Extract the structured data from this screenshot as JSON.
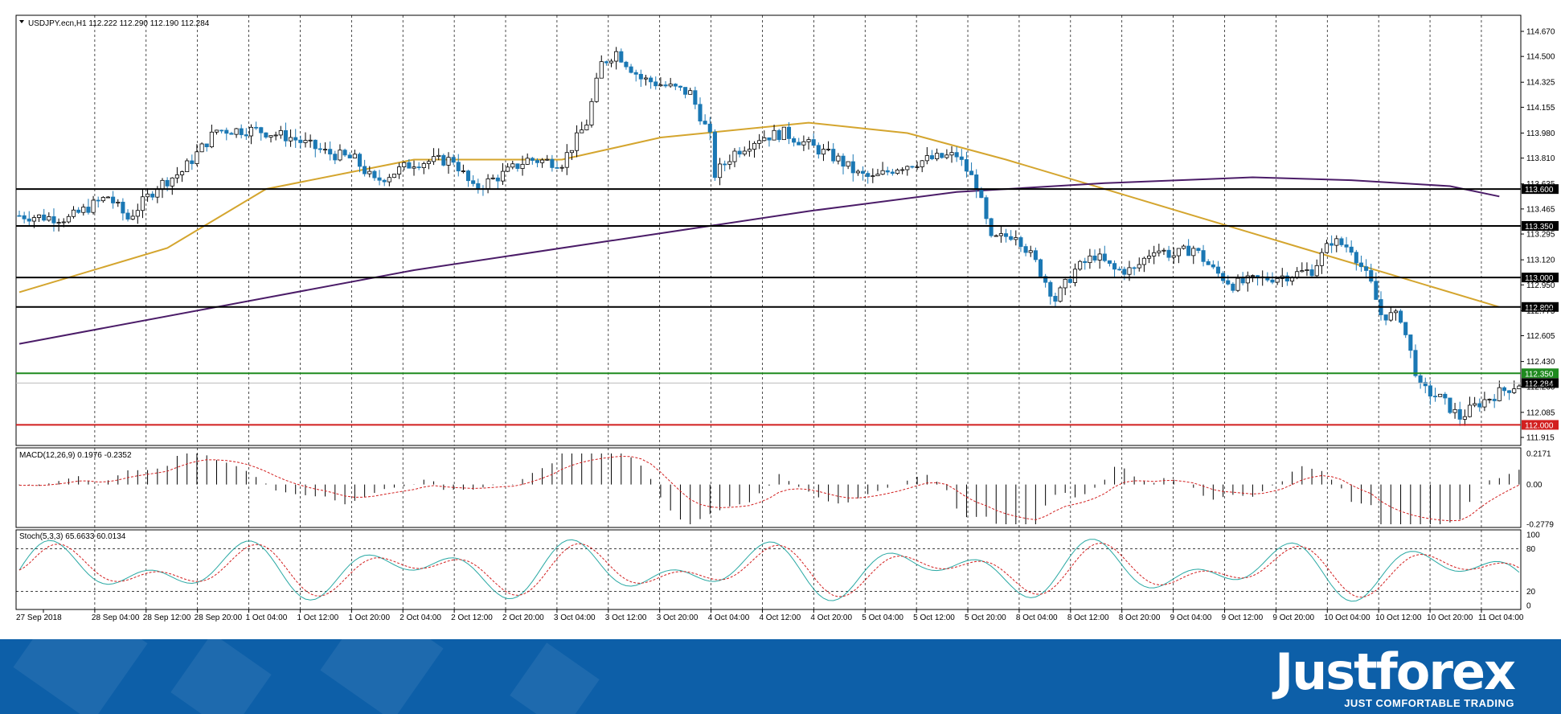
{
  "chart_data": {
    "type": "candlestick",
    "panel_header": "USDJPY.ecn,H1  112.222 112.290 112.190 112.284",
    "y_ticks": [
      "114.670",
      "114.500",
      "114.325",
      "114.155",
      "113.980",
      "113.810",
      "113.635",
      "113.465",
      "113.295",
      "113.120",
      "112.950",
      "112.775",
      "112.605",
      "112.430",
      "112.260",
      "112.085",
      "111.915"
    ],
    "ylim": [
      111.915,
      114.67
    ],
    "x_labels": [
      "27 Sep 2018",
      "28 Sep 04:00",
      "28 Sep 12:00",
      "28 Sep 20:00",
      "1 Oct 04:00",
      "1 Oct 12:00",
      "1 Oct 20:00",
      "2 Oct 04:00",
      "2 Oct 12:00",
      "2 Oct 20:00",
      "3 Oct 04:00",
      "3 Oct 12:00",
      "3 Oct 20:00",
      "4 Oct 04:00",
      "4 Oct 12:00",
      "4 Oct 20:00",
      "5 Oct 04:00",
      "5 Oct 12:00",
      "5 Oct 20:00",
      "8 Oct 04:00",
      "8 Oct 12:00",
      "8 Oct 20:00",
      "9 Oct 04:00",
      "9 Oct 12:00",
      "9 Oct 20:00",
      "10 Oct 04:00",
      "10 Oct 12:00",
      "10 Oct 20:00",
      "11 Oct 04:00"
    ],
    "close_path": [
      [
        0,
        113.42
      ],
      [
        10,
        113.4
      ],
      [
        18,
        113.55
      ],
      [
        22,
        113.4
      ],
      [
        28,
        113.62
      ],
      [
        33,
        113.72
      ],
      [
        40,
        114.0
      ],
      [
        48,
        114.0
      ],
      [
        55,
        113.95
      ],
      [
        62,
        113.85
      ],
      [
        68,
        113.8
      ],
      [
        72,
        113.65
      ],
      [
        80,
        113.78
      ],
      [
        88,
        113.8
      ],
      [
        92,
        113.6
      ],
      [
        98,
        113.7
      ],
      [
        103,
        113.8
      ],
      [
        110,
        113.78
      ],
      [
        115,
        114.05
      ],
      [
        118,
        114.45
      ],
      [
        121,
        114.53
      ],
      [
        126,
        114.35
      ],
      [
        131,
        114.3
      ],
      [
        136,
        114.25
      ],
      [
        140,
        113.95
      ],
      [
        141,
        113.7
      ],
      [
        145,
        113.85
      ],
      [
        150,
        113.95
      ],
      [
        155,
        113.98
      ],
      [
        160,
        113.9
      ],
      [
        166,
        113.8
      ],
      [
        170,
        113.7
      ],
      [
        173,
        113.67
      ],
      [
        178,
        113.75
      ],
      [
        184,
        113.8
      ],
      [
        190,
        113.83
      ],
      [
        194,
        113.63
      ],
      [
        197,
        113.25
      ],
      [
        202,
        113.3
      ],
      [
        206,
        113.1
      ],
      [
        210,
        112.85
      ],
      [
        214,
        113.05
      ],
      [
        218,
        113.15
      ],
      [
        222,
        113.05
      ],
      [
        226,
        113.05
      ],
      [
        230,
        113.2
      ],
      [
        234,
        113.15
      ],
      [
        238,
        113.2
      ],
      [
        242,
        113.05
      ],
      [
        246,
        112.95
      ],
      [
        250,
        112.98
      ],
      [
        254,
        113.0
      ],
      [
        258,
        113.02
      ],
      [
        262,
        113.05
      ],
      [
        266,
        113.25
      ],
      [
        270,
        113.2
      ],
      [
        274,
        112.95
      ],
      [
        276,
        112.75
      ],
      [
        280,
        112.73
      ],
      [
        284,
        112.25
      ],
      [
        288,
        112.18
      ],
      [
        292,
        112.05
      ],
      [
        296,
        112.15
      ],
      [
        300,
        112.22
      ],
      [
        304,
        112.28
      ]
    ],
    "series": [
      {
        "name": "",
        "color": "#d4a52e",
        "points": [
          [
            0,
            112.9
          ],
          [
            30,
            113.2
          ],
          [
            50,
            113.6
          ],
          [
            80,
            113.8
          ],
          [
            110,
            113.8
          ],
          [
            130,
            113.95
          ],
          [
            160,
            114.05
          ],
          [
            180,
            113.98
          ],
          [
            200,
            113.8
          ],
          [
            220,
            113.6
          ],
          [
            240,
            113.4
          ],
          [
            260,
            113.2
          ],
          [
            280,
            113.0
          ],
          [
            300,
            112.8
          ]
        ]
      },
      {
        "name": "",
        "color": "#4b1c68",
        "points": [
          [
            0,
            112.55
          ],
          [
            40,
            112.8
          ],
          [
            80,
            113.05
          ],
          [
            120,
            113.25
          ],
          [
            160,
            113.45
          ],
          [
            190,
            113.58
          ],
          [
            220,
            113.64
          ],
          [
            250,
            113.68
          ],
          [
            270,
            113.66
          ],
          [
            290,
            113.62
          ],
          [
            300,
            113.55
          ]
        ]
      }
    ],
    "x_count": 305,
    "horizontal_levels": [
      {
        "value": 113.6,
        "label": "113.600",
        "color": "#000000"
      },
      {
        "value": 113.35,
        "label": "113.350",
        "color": "#000000"
      },
      {
        "value": 113.0,
        "label": "113.000",
        "color": "#000000"
      },
      {
        "value": 112.8,
        "label": "112.800",
        "color": "#000000"
      },
      {
        "value": 112.35,
        "label": "112.350",
        "color": "#1f8a1f"
      },
      {
        "value": 112.284,
        "label": "112.284",
        "color": "#000000"
      },
      {
        "value": 112.0,
        "label": "112.000",
        "color": "#d21f1f"
      }
    ],
    "candle_up_color": "#ffffff",
    "candle_down_color": "#1b78b4",
    "macd": {
      "header": "MACD(12,26,9) 0.1976 -0.2352",
      "y_ticks": [
        "0.2171",
        "0.00",
        "-0.2779"
      ],
      "ylim": [
        -0.2779,
        0.2171
      ]
    },
    "stoch": {
      "header": "Stoch(5,3,3) 65.6633 60.0134",
      "y_ticks": [
        "100",
        "80",
        "20",
        "0"
      ],
      "levels": [
        80,
        20
      ]
    }
  },
  "branding": {
    "logo": "Justforex",
    "tagline": "JUST COMFORTABLE TRADING"
  }
}
